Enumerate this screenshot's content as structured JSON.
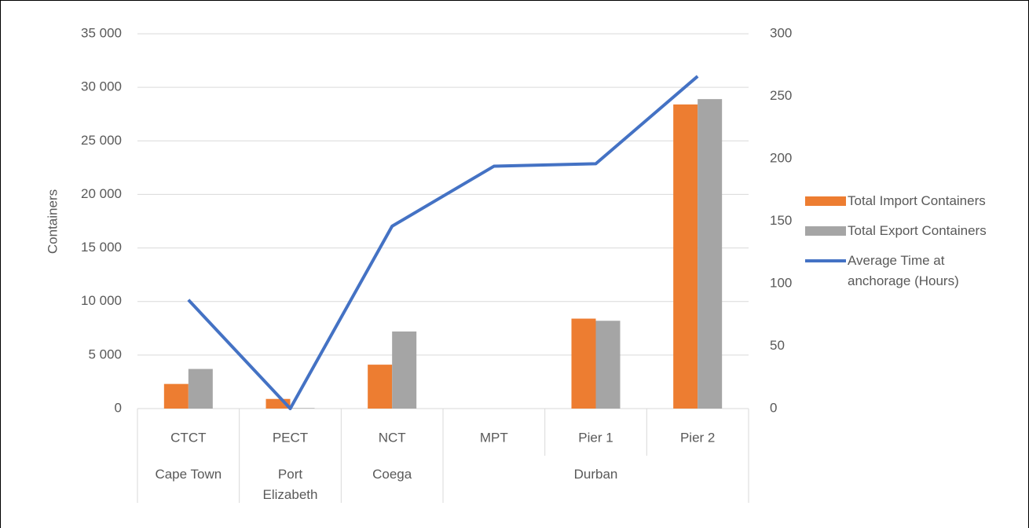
{
  "chart_data": {
    "type": "bar-line",
    "y_label": "Containers",
    "groups": [
      {
        "name": "Cape Town",
        "categories": [
          "CTCT"
        ]
      },
      {
        "name": "Port Elizabeth",
        "categories": [
          "PECT"
        ]
      },
      {
        "name": "Coega",
        "categories": [
          "NCT"
        ]
      },
      {
        "name": "Durban",
        "categories": [
          "MPT",
          "Pier 1",
          "Pier 2"
        ]
      }
    ],
    "series": [
      {
        "name": "Total Import Containers",
        "type": "bar",
        "color": "#ED7D31",
        "values": [
          2300,
          900,
          4100,
          0,
          8400,
          28400
        ]
      },
      {
        "name": "Total Export Containers",
        "type": "bar",
        "color": "#A5A5A5",
        "values": [
          3700,
          50,
          7200,
          0,
          8200,
          28900
        ]
      },
      {
        "name": "Average Time at anchorage (Hours)",
        "type": "line",
        "axis": "y2",
        "color": "#4472C4",
        "values": [
          87,
          0,
          146,
          194,
          196,
          266
        ]
      }
    ],
    "ylim": [
      0,
      35000
    ],
    "yticks": [
      0,
      {
        "value": 5000,
        "label": "5 000"
      },
      {
        "value": 10000,
        "label": "10 000"
      },
      {
        "value": 15000,
        "label": "15 000"
      },
      {
        "value": 20000,
        "label": "20 000"
      },
      {
        "value": 25000,
        "label": "25 000"
      },
      {
        "value": 30000,
        "label": "30 000"
      },
      {
        "value": 35000,
        "label": "35 000"
      }
    ],
    "y2lim": [
      0,
      300
    ],
    "y2ticks": [
      0,
      50,
      100,
      150,
      200,
      250,
      300
    ],
    "grid": true,
    "legend": "right"
  }
}
